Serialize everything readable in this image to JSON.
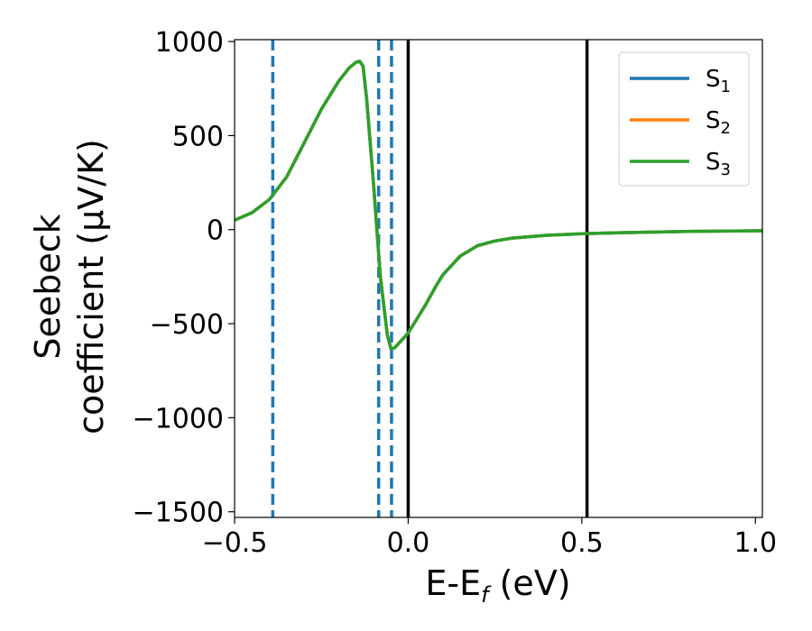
{
  "chart_data": {
    "type": "line",
    "title": "",
    "xlabel": "E-E",
    "xlabel_sub": "f",
    "xlabel_unit": " (eV)",
    "ylabel_line1": "Seebeck",
    "ylabel_line2": "coefficient  (μV/K)",
    "xlim": [
      -0.5,
      1.02
    ],
    "ylim": [
      -1530,
      1010
    ],
    "xticks": [
      {
        "value": -0.5,
        "label": "−0.5"
      },
      {
        "value": 0.0,
        "label": "0.0"
      },
      {
        "value": 0.5,
        "label": "0.5"
      },
      {
        "value": 1.0,
        "label": "1.0"
      }
    ],
    "yticks": [
      {
        "value": 1000,
        "label": "1000"
      },
      {
        "value": 500,
        "label": "500"
      },
      {
        "value": 0,
        "label": "0"
      },
      {
        "value": -500,
        "label": "−500"
      },
      {
        "value": -1000,
        "label": "−1000"
      },
      {
        "value": -1500,
        "label": "−1500"
      }
    ],
    "series": [
      {
        "name": "S",
        "name_sub": "1",
        "color": "#1f77b4",
        "x": [
          -0.5,
          -0.45,
          -0.4,
          -0.35,
          -0.3,
          -0.25,
          -0.2,
          -0.17,
          -0.15,
          -0.14,
          -0.13,
          -0.12,
          -0.1,
          -0.08,
          -0.06,
          -0.05,
          -0.04,
          -0.03,
          -0.02,
          -0.01,
          0.0,
          0.02,
          0.05,
          0.08,
          0.1,
          0.15,
          0.2,
          0.25,
          0.3,
          0.4,
          0.5,
          0.6,
          0.7,
          0.8,
          0.9,
          1.02
        ],
        "y": [
          50,
          90,
          160,
          280,
          460,
          640,
          790,
          860,
          890,
          895,
          870,
          700,
          250,
          -250,
          -560,
          -630,
          -630,
          -610,
          -590,
          -570,
          -550,
          -490,
          -400,
          -300,
          -240,
          -140,
          -85,
          -60,
          -45,
          -30,
          -22,
          -17,
          -13,
          -10,
          -8,
          -6
        ]
      },
      {
        "name": "S",
        "name_sub": "2",
        "color": "#ff7f0e",
        "x": [
          -0.5,
          -0.45,
          -0.4,
          -0.35,
          -0.3,
          -0.25,
          -0.2,
          -0.17,
          -0.15,
          -0.14,
          -0.13,
          -0.12,
          -0.1,
          -0.08,
          -0.06,
          -0.05,
          -0.04,
          -0.03,
          -0.02,
          -0.01,
          0.0,
          0.02,
          0.05,
          0.08,
          0.1,
          0.15,
          0.2,
          0.25,
          0.3,
          0.4,
          0.5,
          0.6,
          0.7,
          0.8,
          0.9,
          1.02
        ],
        "y": [
          50,
          90,
          160,
          280,
          460,
          640,
          790,
          860,
          890,
          895,
          870,
          700,
          250,
          -250,
          -560,
          -630,
          -630,
          -610,
          -590,
          -570,
          -550,
          -490,
          -400,
          -300,
          -240,
          -140,
          -85,
          -60,
          -45,
          -30,
          -22,
          -17,
          -13,
          -10,
          -8,
          -6
        ]
      },
      {
        "name": "S",
        "name_sub": "3",
        "color": "#2ca02c",
        "x": [
          -0.5,
          -0.45,
          -0.4,
          -0.35,
          -0.3,
          -0.25,
          -0.2,
          -0.17,
          -0.15,
          -0.14,
          -0.13,
          -0.12,
          -0.1,
          -0.08,
          -0.06,
          -0.05,
          -0.04,
          -0.03,
          -0.02,
          -0.01,
          0.0,
          0.02,
          0.05,
          0.08,
          0.1,
          0.15,
          0.2,
          0.25,
          0.3,
          0.4,
          0.5,
          0.6,
          0.7,
          0.8,
          0.9,
          1.02
        ],
        "y": [
          50,
          90,
          160,
          280,
          460,
          640,
          790,
          860,
          890,
          895,
          870,
          700,
          250,
          -250,
          -560,
          -630,
          -630,
          -610,
          -590,
          -570,
          -550,
          -490,
          -400,
          -300,
          -240,
          -140,
          -85,
          -60,
          -45,
          -30,
          -22,
          -17,
          -13,
          -10,
          -8,
          -6
        ]
      }
    ],
    "vlines": [
      {
        "x": -0.39,
        "style": "dashed",
        "color": "#1f77b4"
      },
      {
        "x": -0.085,
        "style": "dashed",
        "color": "#1f77b4"
      },
      {
        "x": -0.048,
        "style": "dashed",
        "color": "#1f77b4"
      },
      {
        "x": 0.0,
        "style": "solid",
        "color": "#000000"
      },
      {
        "x": 0.515,
        "style": "solid",
        "color": "#000000"
      }
    ],
    "grid": false,
    "legend_position": "top-right"
  }
}
